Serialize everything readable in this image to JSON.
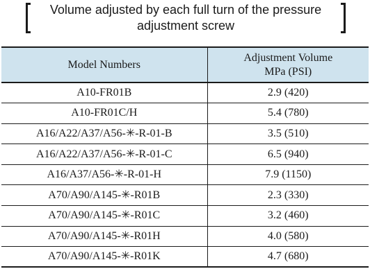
{
  "title": {
    "line1": "Volume adjusted by each full turn of the pressure",
    "line2": "adjustment screw"
  },
  "table": {
    "header": {
      "model": "Model Numbers",
      "volume_line1": "Adjustment Volume",
      "volume_line2": "MPa (PSI)"
    },
    "header_bg": "#cfe3ee",
    "rows": [
      {
        "model": "A10-FR01B",
        "volume": "2.9 (420)"
      },
      {
        "model": "A10-FR01C/H",
        "volume": "5.4 (780)"
      },
      {
        "model": "A16/A22/A37/A56-✳-R-01-B",
        "volume": "3.5 (510)"
      },
      {
        "model": "A16/A22/A37/A56-✳-R-01-C",
        "volume": "6.5 (940)"
      },
      {
        "model": "A16/A37/A56-✳-R-01-H",
        "volume": "7.9 (1150)"
      },
      {
        "model": "A70/A90/A145-✳-R01B",
        "volume": "2.3 (330)"
      },
      {
        "model": "A70/A90/A145-✳-R01C",
        "volume": "3.2 (460)"
      },
      {
        "model": "A70/A90/A145-✳-R01H",
        "volume": "4.0 (580)"
      },
      {
        "model": "A70/A90/A145-✳-R01K",
        "volume": "4.7 (680)"
      }
    ]
  }
}
